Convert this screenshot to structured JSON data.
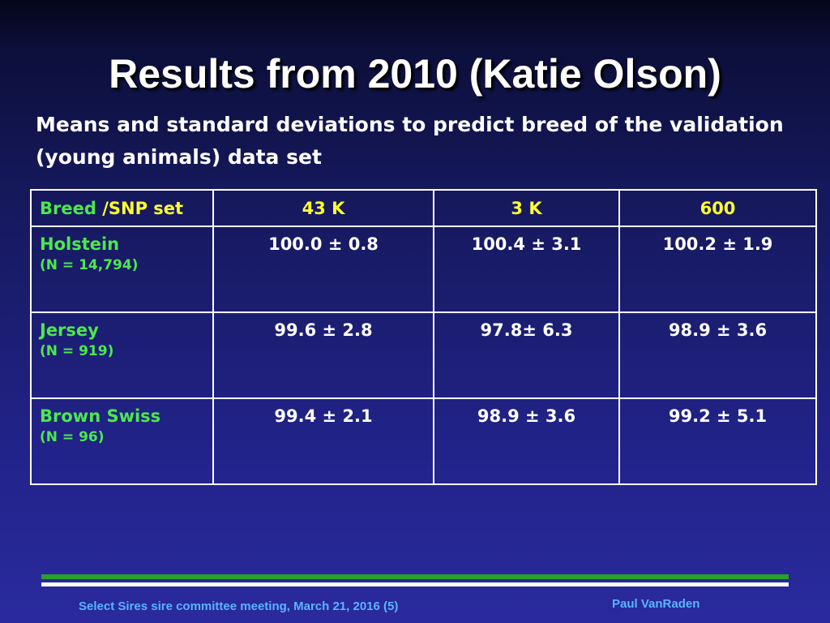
{
  "slide": {
    "title": "Results from 2010 (Katie Olson)",
    "subtitle": "Means and standard deviations to predict breed of the validation (young animals) data set"
  },
  "table": {
    "header": {
      "breed_label": "Breed",
      "slash_snp_label": "/SNP set",
      "columns": [
        "43 K",
        "3 K",
        "600"
      ]
    },
    "rows": [
      {
        "breed": "Holstein",
        "count": "(N = 14,794)",
        "values": [
          "100.0 ± 0.8",
          "100.4 ± 3.1",
          "100.2 ± 1.9"
        ]
      },
      {
        "breed": "Jersey",
        "count": "(N = 919)",
        "values": [
          "99.6 ± 2.8",
          "97.8± 6.3",
          "98.9 ± 3.6"
        ]
      },
      {
        "breed": "Brown Swiss",
        "count": "(N = 96)",
        "values": [
          "99.4 ± 2.1",
          "98.9 ± 3.6",
          "99.2 ± 5.1"
        ]
      }
    ]
  },
  "footer": {
    "meeting": "Select Sires sire committee meeting, March 21, 2016 (5)",
    "author": "Paul VanRaden"
  },
  "colors": {
    "background": "#15185a",
    "label_green": "#4de84d",
    "header_yellow": "#ffff33",
    "footer_blue": "#5ab4ff",
    "bar_green": "#2aa12a"
  }
}
